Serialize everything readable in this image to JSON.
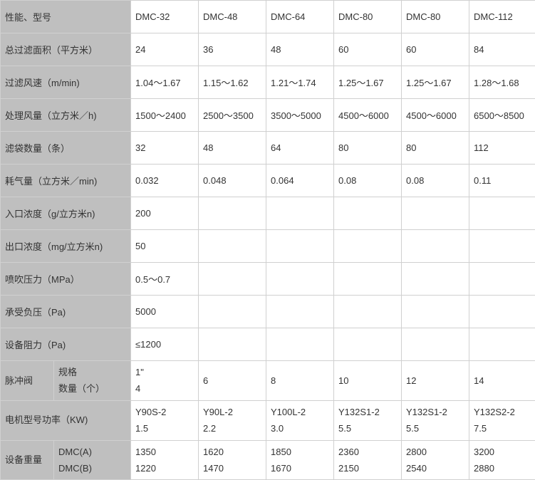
{
  "columns": [
    "DMC-32",
    "DMC-48",
    "DMC-64",
    "DMC-80",
    "DMC-80",
    "DMC-112"
  ],
  "rows": {
    "model_label": "性能、型号",
    "filter_area": {
      "label": "总过滤面积（平方米）",
      "values": [
        "24",
        "36",
        "48",
        "60",
        "60",
        "84"
      ]
    },
    "filter_speed": {
      "label": "过滤风速（m/min)",
      "values": [
        "1.04～1.67",
        "1.15～1.62",
        "1.21～1.74",
        "1.25～1.67",
        "1.25～1.67",
        "1.28～1.68"
      ]
    },
    "air_volume": {
      "label": "处理风量（立方米／h)",
      "values": [
        "1500～2400",
        "2500～3500",
        "3500～5000",
        "4500～6000",
        "4500～6000",
        "6500～8500"
      ]
    },
    "bag_count": {
      "label": "滤袋数量（条）",
      "values": [
        "32",
        "48",
        "64",
        "80",
        "80",
        "112"
      ]
    },
    "air_consume": {
      "label": "耗气量（立方米／min)",
      "values": [
        "0.032",
        "0.048",
        "0.064",
        "0.08",
        "0.08",
        "0.11"
      ]
    },
    "inlet": {
      "label": "入口浓度（g/立方米n)",
      "values": [
        "200",
        "",
        "",
        "",
        "",
        ""
      ]
    },
    "outlet": {
      "label": "出口浓度（mg/立方米n)",
      "values": [
        "50",
        "",
        "",
        "",
        "",
        ""
      ]
    },
    "blow_pressure": {
      "label": "喷吹压力（MPa）",
      "values": [
        "0.5～0.7",
        "",
        "",
        "",
        "",
        ""
      ]
    },
    "neg_pressure": {
      "label": "承受负压（Pa)",
      "values": [
        "5000",
        "",
        "",
        "",
        "",
        ""
      ]
    },
    "resistance": {
      "label": "设备阻力（Pa)",
      "values": [
        "≤1200",
        "",
        "",
        "",
        "",
        ""
      ]
    },
    "pulse_valve": {
      "label": "脉冲阀",
      "spec_label": "规格",
      "qty_label": "数量（个）",
      "spec_values": [
        "1\"",
        "",
        "",
        "",
        "",
        ""
      ],
      "qty_values": [
        "4",
        "6",
        "8",
        "10",
        "12",
        "14"
      ]
    },
    "motor": {
      "label": "电机型号功率（KW)",
      "model_values": [
        "Y90S-2",
        "Y90L-2",
        "Y100L-2",
        "Y132S1-2",
        "Y132S1-2",
        "Y132S2-2"
      ],
      "power_values": [
        "1.5",
        "2.2",
        "3.0",
        "5.5",
        "5.5",
        "7.5"
      ]
    },
    "weight": {
      "label": "设备重量",
      "a_label": "DMC(A)",
      "b_label": "DMC(B)",
      "a_values": [
        "1350",
        "1620",
        "1850",
        "2360",
        "2800",
        "3200"
      ],
      "b_values": [
        "1220",
        "1470",
        "1670",
        "2150",
        "2540",
        "2880"
      ]
    }
  }
}
